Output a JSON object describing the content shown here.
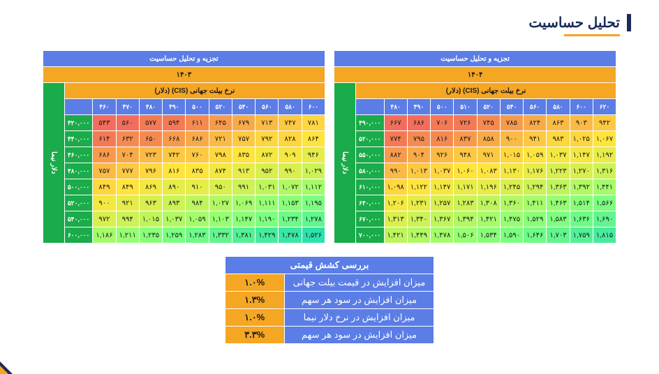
{
  "title": "تحلیل حساسیت",
  "tables": [
    {
      "header": "تجزیه و تحلیل حساسیت",
      "year": "۱۴۰۴",
      "axis_top": "نرخ بیلت جهانی (CIS) (دلار)",
      "axis_side": "دلار نیما",
      "cols": [
        "۴۸۰",
        "۴۹۰",
        "۵۰۰",
        "۵۱۰",
        "۵۲۰",
        "۵۴۰",
        "۵۶۰",
        "۵۸۰",
        "۶۰۰",
        "۶۲۰"
      ],
      "rows_h": [
        "۴۹۰,۰۰۰",
        "۵۲۰,۰۰۰",
        "۵۵۰,۰۰۰",
        "۵۸۰,۰۰۰",
        "۶۱۰,۰۰۰",
        "۶۴۰,۰۰۰",
        "۶۷۰,۰۰۰",
        "۷۰۰,۰۰۰"
      ],
      "cells": [
        [
          "۶۶۷",
          "۶۸۶",
          "۷۰۶",
          "۷۲۶",
          "۷۴۵",
          "۷۸۵",
          "۸۲۴",
          "۸۶۳",
          "۹۰۳",
          "۹۴۲"
        ],
        [
          "۷۷۴",
          "۷۹۵",
          "۸۱۶",
          "۸۳۷",
          "۸۵۸",
          "۹۰۰",
          "۹۴۱",
          "۹۸۳",
          "۱,۰۲۵",
          "۱,۰۶۷"
        ],
        [
          "۸۸۲",
          "۹۰۴",
          "۹۲۶",
          "۹۴۸",
          "۹۷۱",
          "۱,۰۱۵",
          "۱,۰۵۹",
          "۱,۰۳۷",
          "۱,۱۴۷",
          "۱,۱۹۲"
        ],
        [
          "۹۹۰",
          "۱,۰۱۳",
          "۱,۰۳۷",
          "۱,۰۶۰",
          "۱,۰۸۳",
          "۱,۱۳۰",
          "۱,۱۷۶",
          "۱,۲۲۳",
          "۱,۲۷۰",
          "۱,۳۱۶"
        ],
        [
          "۱,۰۹۸",
          "۱,۱۲۲",
          "۱,۱۴۷",
          "۱,۱۷۱",
          "۱,۱۹۶",
          "۱,۲۴۵",
          "۱,۲۹۴",
          "۱,۳۶۳",
          "۱,۳۹۲",
          "۱,۴۴۱"
        ],
        [
          "۱,۲۰۶",
          "۱,۲۳۱",
          "۱,۲۵۷",
          "۱,۲۸۳",
          "۱,۳۰۸",
          "۱,۳۶۰",
          "۱,۴۱۱",
          "۱,۴۶۳",
          "۱,۵۱۴",
          "۱,۵۶۶"
        ],
        [
          "۱,۳۱۳",
          "۱,۳۴۰",
          "۱,۳۶۷",
          "۱,۳۹۴",
          "۱,۴۲۱",
          "۱,۴۷۵",
          "۱,۵۲۹",
          "۱,۵۸۳",
          "۱,۶۳۶",
          "۱,۶۹۰"
        ],
        [
          "۱,۴۲۱",
          "۱,۴۴۹",
          "۱,۴۷۸",
          "۱,۵۰۶",
          "۱,۵۳۴",
          "۱,۵۹۰",
          "۱,۶۴۶",
          "۱,۷۰۳",
          "۱,۷۵۹",
          "۱,۸۱۵"
        ]
      ],
      "colors": [
        [
          "#f26d5b",
          "#f26d5b",
          "#f37a55",
          "#f37a55",
          "#f58a50",
          "#f79a4c",
          "#f9aa48",
          "#fbba45",
          "#fbba45",
          "#fdc842"
        ],
        [
          "#f37a55",
          "#f58a50",
          "#f58a50",
          "#f79a4c",
          "#f9aa48",
          "#fbba45",
          "#fdc842",
          "#fed63f",
          "#fed63f",
          "#ffe43c"
        ],
        [
          "#f79a4c",
          "#f9aa48",
          "#fbba45",
          "#fdc842",
          "#fdc842",
          "#fed63f",
          "#ffe43c",
          "#f3e842",
          "#f3e842",
          "#e6ec48"
        ],
        [
          "#fbba45",
          "#fdc842",
          "#fed63f",
          "#ffe43c",
          "#ffe43c",
          "#f3e842",
          "#e6ec48",
          "#d9ef4f",
          "#d9ef4f",
          "#ccf256"
        ],
        [
          "#fed63f",
          "#ffe43c",
          "#f3e842",
          "#e6ec48",
          "#e6ec48",
          "#d9ef4f",
          "#ccf256",
          "#bef55d",
          "#b1f864",
          "#a4fb6b"
        ],
        [
          "#f3e842",
          "#e6ec48",
          "#d9ef4f",
          "#ccf256",
          "#bef55d",
          "#b1f864",
          "#a4fb6b",
          "#96fe72",
          "#89ff79",
          "#7cff80"
        ],
        [
          "#d9ef4f",
          "#ccf256",
          "#bef55d",
          "#b1f864",
          "#a4fb6b",
          "#96fe72",
          "#89ff79",
          "#7cff80",
          "#6efa87",
          "#61f58e"
        ],
        [
          "#bef55d",
          "#b1f864",
          "#a4fb6b",
          "#96fe72",
          "#89ff79",
          "#7cff80",
          "#6efa87",
          "#61f58e",
          "#54f095",
          "#47eb9c"
        ]
      ]
    },
    {
      "header": "تجزیه و تحلیل حساسیت",
      "year": "۱۴۰۳",
      "axis_top": "نرخ بیلت جهانی (CIS) (دلار)",
      "axis_side": "دلار نیما",
      "cols": [
        "۴۶۰",
        "۴۷۰",
        "۴۸۰",
        "۴۹۰",
        "۵۰۰",
        "۵۲۰",
        "۵۴۰",
        "۵۶۰",
        "۵۸۰",
        "۶۰۰"
      ],
      "rows_h": [
        "۴۲۰,۰۰۰",
        "۴۴۰,۰۰۰",
        "۴۶۰,۰۰۰",
        "۴۸۰,۰۰۰",
        "۵۰۰,۰۰۰",
        "۵۲۰,۰۰۰",
        "۵۴۰,۰۰۰",
        "۶۰۰,۰۰۰"
      ],
      "cells": [
        [
          "۵۴۳",
          "۵۶۰",
          "۵۷۷",
          "۵۹۴",
          "۶۱۱",
          "۶۴۵",
          "۶۷۹",
          "۷۱۳",
          "۷۴۷",
          "۷۸۱"
        ],
        [
          "۶۱۴",
          "۶۳۲",
          "۶۵۰",
          "۶۶۸",
          "۶۸۶",
          "۷۲۱",
          "۷۵۷",
          "۷۹۲",
          "۸۲۸",
          "۸۶۴"
        ],
        [
          "۶۸۶",
          "۷۰۴",
          "۷۲۳",
          "۷۴۲",
          "۷۶۰",
          "۷۹۸",
          "۸۳۵",
          "۸۷۲",
          "۹۰۹",
          "۹۴۶"
        ],
        [
          "۷۵۷",
          "۷۷۷",
          "۷۹۶",
          "۸۱۶",
          "۸۳۵",
          "۸۷۴",
          "۹۱۳",
          "۹۵۲",
          "۹۹۰",
          "۱,۰۲۹"
        ],
        [
          "۸۴۹",
          "۸۴۹",
          "۸۶۹",
          "۸۹۰",
          "۹۱۰",
          "۹۵۰",
          "۹۹۱",
          "۱,۰۳۱",
          "۱,۰۷۲",
          "۱,۱۱۲"
        ],
        [
          "۹۰۰",
          "۹۲۱",
          "۹۶۳",
          "۸۹۳",
          "۹۸۴",
          "۱,۰۲۷",
          "۱,۰۶۹",
          "۱,۱۱۱",
          "۱,۱۵۳",
          "۱,۱۹۵"
        ],
        [
          "۹۷۲",
          "۹۹۴",
          "۱,۰۱۵",
          "۱,۰۳۷",
          "۱,۰۵۹",
          "۱,۱۰۳",
          "۱,۱۴۷",
          "۱,۱۹۰",
          "۱,۲۳۴",
          "۱,۲۷۸"
        ],
        [
          "۱,۱۸۶",
          "۱,۲۱۱",
          "۱,۲۳۵",
          "۱,۲۵۹",
          "۱,۲۸۳",
          "۱,۳۳۲",
          "۱,۳۸۱",
          "۱,۴۲۹",
          "۱,۴۷۸",
          "۱,۵۲۶"
        ]
      ],
      "colors": [
        [
          "#f26d5b",
          "#f26d5b",
          "#f37a55",
          "#f37a55",
          "#f58a50",
          "#f79a4c",
          "#f9aa48",
          "#fbba45",
          "#fdc842",
          "#fed63f"
        ],
        [
          "#f37a55",
          "#f58a50",
          "#f58a50",
          "#f79a4c",
          "#f9aa48",
          "#fbba45",
          "#fdc842",
          "#fed63f",
          "#fed63f",
          "#ffe43c"
        ],
        [
          "#f79a4c",
          "#f9aa48",
          "#fbba45",
          "#fdc842",
          "#fdc842",
          "#fed63f",
          "#ffe43c",
          "#f3e842",
          "#f3e842",
          "#e6ec48"
        ],
        [
          "#fbba45",
          "#fdc842",
          "#fed63f",
          "#ffe43c",
          "#ffe43c",
          "#f3e842",
          "#e6ec48",
          "#d9ef4f",
          "#d9ef4f",
          "#ccf256"
        ],
        [
          "#fed63f",
          "#ffe43c",
          "#f3e842",
          "#e6ec48",
          "#e6ec48",
          "#d9ef4f",
          "#ccf256",
          "#bef55d",
          "#b1f864",
          "#a4fb6b"
        ],
        [
          "#f3e842",
          "#e6ec48",
          "#d9ef4f",
          "#ccf256",
          "#bef55d",
          "#b1f864",
          "#a4fb6b",
          "#96fe72",
          "#89ff79",
          "#7cff80"
        ],
        [
          "#d9ef4f",
          "#ccf256",
          "#bef55d",
          "#b1f864",
          "#a4fb6b",
          "#96fe72",
          "#89ff79",
          "#7cff80",
          "#6efa87",
          "#61f58e"
        ],
        [
          "#a4fb6b",
          "#96fe72",
          "#89ff79",
          "#7cff80",
          "#6efa87",
          "#61f58e",
          "#54f095",
          "#47eb9c",
          "#3ae6a3",
          "#2de1aa"
        ]
      ]
    }
  ],
  "summary": {
    "title": "بررسی کشش قیمتی",
    "rows": [
      {
        "label": "میزان افزایش در قیمت بیلت جهانی",
        "val": "۱.۰%"
      },
      {
        "label": "میزان افزایش در سود هر سهم",
        "val": "۱.۳%"
      },
      {
        "label": "میزان افزایش در نرخ دلار نیما",
        "val": "۱.۰%"
      },
      {
        "label": "میزان افزایش در سود هر سهم",
        "val": "۳.۳%"
      }
    ]
  }
}
